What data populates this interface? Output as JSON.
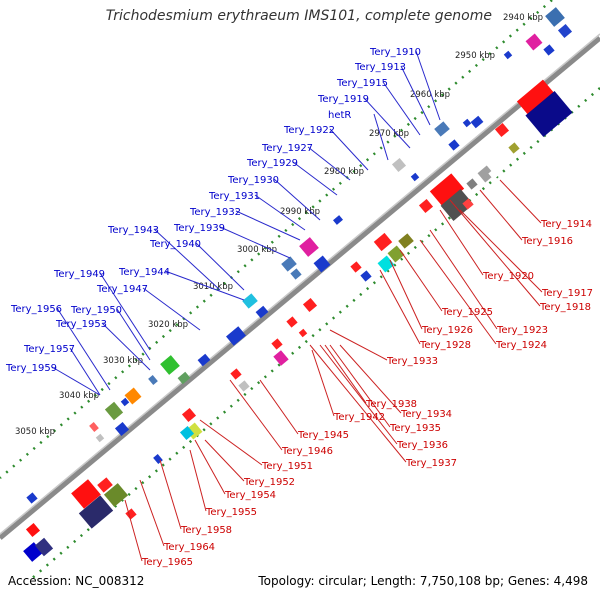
{
  "title": "Trichodesmium erythraeum IMS101, complete genome",
  "footer": {
    "accession": "Accession: NC_008312",
    "summary": "Topology: circular; Length: 7,750,108 bp; Genes: 4,498"
  },
  "colors": {
    "backbone": "#7a7a7a",
    "ticks": "#2e8b2e",
    "forward_label": "#0000cc",
    "reverse_label": "#cc0000"
  },
  "ticks": [
    "2940 kbp",
    "2950 kbp",
    "2960 kbp",
    "2970 kbp",
    "2980 kbp",
    "2990 kbp",
    "3000 kbp",
    "3010 kbp",
    "3020 kbp",
    "3030 kbp",
    "3040 kbp",
    "3050 kbp"
  ],
  "forward_genes": [
    "Tery_1910",
    "Tery_1913",
    "Tery_1915",
    "Tery_1919",
    "hetR",
    "Tery_1922",
    "Tery_1927",
    "Tery_1929",
    "Tery_1930",
    "Tery_1931",
    "Tery_1932",
    "Tery_1939",
    "Tery_1943",
    "Tery_1940",
    "Tery_1944",
    "Tery_1949",
    "Tery_1947",
    "Tery_1950",
    "Tery_1956",
    "Tery_1953",
    "Tery_1957",
    "Tery_1959"
  ],
  "reverse_genes": [
    "Tery_1914",
    "Tery_1916",
    "Tery_1920",
    "Tery_1917",
    "Tery_1918",
    "Tery_1925",
    "Tery_1923",
    "Tery_1926",
    "Tery_1924",
    "Tery_1928",
    "Tery_1933",
    "Tery_1938",
    "Tery_1942",
    "Tery_1934",
    "Tery_1935",
    "Tery_1945",
    "Tery_1936",
    "Tery_1946",
    "Tery_1937",
    "Tery_1951",
    "Tery_1952",
    "Tery_1954",
    "Tery_1955",
    "Tery_1958",
    "Tery_1964",
    "Tery_1965"
  ]
}
